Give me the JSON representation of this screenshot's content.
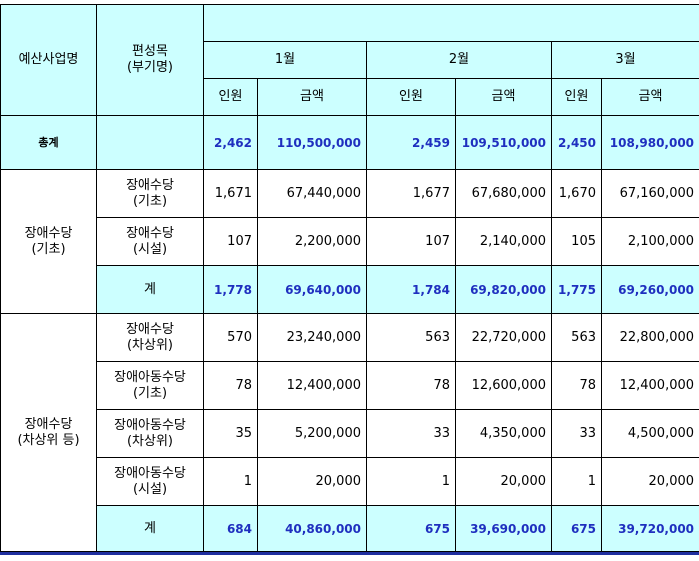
{
  "header": {
    "project": "예산사업명",
    "item": [
      "편성목",
      "(부기명)"
    ],
    "months": [
      "1월",
      "2월",
      "3월"
    ],
    "headcount": "인원",
    "amount": "금액"
  },
  "total": {
    "label": "총계",
    "values": [
      "2,462",
      "110,500,000",
      "2,459",
      "109,510,000",
      "2,450",
      "108,980,000"
    ]
  },
  "groups": [
    {
      "name": [
        "장애수당",
        "(기초)"
      ],
      "rows": [
        {
          "item": [
            "장애수당",
            "(기초)"
          ],
          "values": [
            "1,671",
            "67,440,000",
            "1,677",
            "67,680,000",
            "1,670",
            "67,160,000"
          ]
        },
        {
          "item": [
            "장애수당",
            "(시설)"
          ],
          "values": [
            "107",
            "2,200,000",
            "107",
            "2,140,000",
            "105",
            "2,100,000"
          ]
        }
      ],
      "subtotal": {
        "label": "계",
        "values": [
          "1,778",
          "69,640,000",
          "1,784",
          "69,820,000",
          "1,775",
          "69,260,000"
        ]
      }
    },
    {
      "name": [
        "장애수당",
        "(차상위 등)"
      ],
      "rows": [
        {
          "item": [
            "장애수당",
            "(차상위)"
          ],
          "values": [
            "570",
            "23,240,000",
            "563",
            "22,720,000",
            "563",
            "22,800,000"
          ]
        },
        {
          "item": [
            "장애아동수당",
            "(기초)"
          ],
          "values": [
            "78",
            "12,400,000",
            "78",
            "12,600,000",
            "78",
            "12,400,000"
          ]
        },
        {
          "item": [
            "장애아동수당",
            "(차상위)"
          ],
          "values": [
            "35",
            "5,200,000",
            "33",
            "4,350,000",
            "33",
            "4,500,000"
          ]
        },
        {
          "item": [
            "장애아동수당",
            "(시설)"
          ],
          "values": [
            "1",
            "20,000",
            "1",
            "20,000",
            "1",
            "20,000"
          ]
        }
      ],
      "subtotal": {
        "label": "계",
        "values": [
          "684",
          "40,860,000",
          "675",
          "39,690,000",
          "675",
          "39,720,000"
        ]
      }
    }
  ]
}
